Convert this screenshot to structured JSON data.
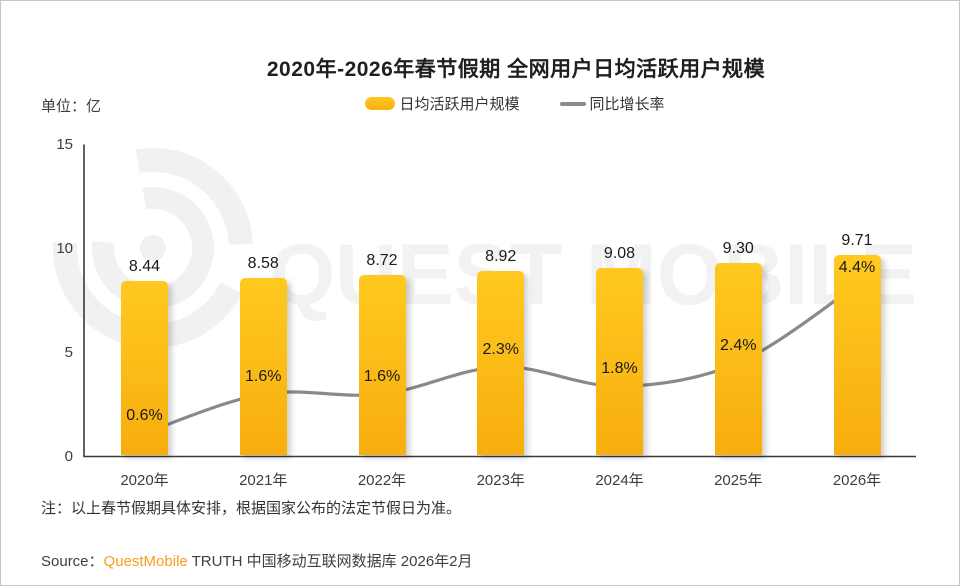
{
  "title": "2020年-2026年春节假期 全网用户日均活跃用户规模",
  "unit_label": "单位：亿",
  "legend": {
    "bar_label": "日均活跃用户规模",
    "line_label": "同比增长率"
  },
  "watermark": {
    "text": "QUEST MOBILE"
  },
  "note": {
    "text": "注：以上春节假期具体安排，根据国家公布的法定节假日为准。"
  },
  "source": {
    "prefix": "Source：",
    "brand": "QuestMobile",
    "rest": " TRUTH 中国移动互联网数据库 2026年2月"
  },
  "colors": {
    "bar_yellow": "#FFC017",
    "bar_gradient_top": "#FFC91F",
    "bar_gradient_bottom": "#F8AE0E",
    "line_gray": "#8A8A8A",
    "brand_orange": "#F89C1C",
    "axis": "#3a3a3a",
    "watermark_gray": "#f2f2f2"
  },
  "chart_data": {
    "type": "bar",
    "title": "2020年-2026年春节假期 全网用户日均活跃用户规模",
    "categories": [
      "2020年",
      "2021年",
      "2022年",
      "2023年",
      "2024年",
      "2025年",
      "2026年"
    ],
    "series": [
      {
        "name": "日均活跃用户规模",
        "type": "bar",
        "unit": "亿",
        "values": [
          8.44,
          8.58,
          8.72,
          8.92,
          9.08,
          9.3,
          9.71
        ],
        "value_labels": [
          "8.44",
          "8.58",
          "8.72",
          "8.92",
          "9.08",
          "9.30",
          "9.71"
        ],
        "color": "#FFC017"
      },
      {
        "name": "同比增长率",
        "type": "line",
        "values": [
          0.6,
          1.6,
          1.6,
          2.3,
          1.8,
          2.4,
          4.4
        ],
        "value_labels": [
          "0.6%",
          "1.6%",
          "1.6%",
          "2.3%",
          "1.8%",
          "2.4%",
          "4.4%"
        ],
        "color": "#8A8A8A"
      }
    ],
    "ylabel": "单位：亿",
    "ylim": [
      0,
      15
    ],
    "yticks": [
      0,
      5,
      10,
      15
    ],
    "secondary_ylim": [
      0,
      8
    ],
    "grid": false,
    "legend_position": "top"
  }
}
